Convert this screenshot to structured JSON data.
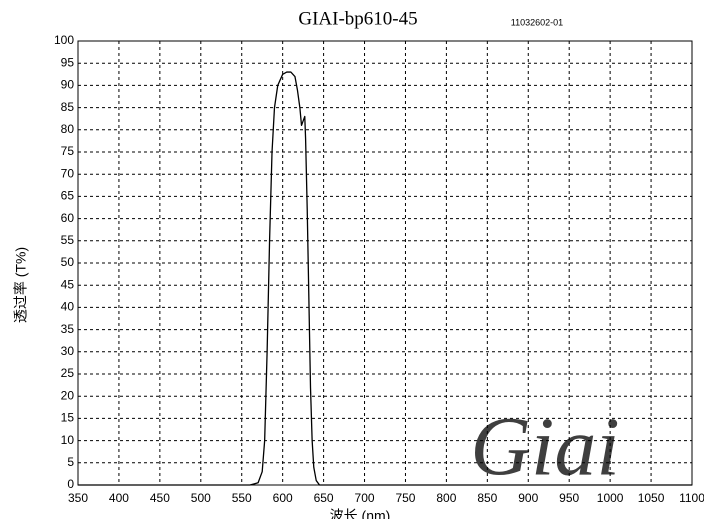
{
  "chart_data": {
    "type": "line",
    "title": "GIAI-bp610-45",
    "subtitle": "11032602-01",
    "x_label": "波长 (nm)",
    "y_label": "透过率 (T%)",
    "watermark": "Giai",
    "x": [
      350,
      560,
      570,
      575,
      578,
      581,
      584,
      587,
      590,
      594,
      600,
      605,
      610,
      615,
      618,
      621,
      623,
      625,
      627,
      628,
      630,
      632,
      634,
      636,
      638,
      641,
      645,
      1100
    ],
    "series": [
      {
        "name": "GIAI-bp610-45",
        "color": "#000000",
        "values": [
          0,
          0,
          0.5,
          3,
          10,
          30,
          55,
          75,
          85,
          90,
          92.5,
          93,
          93,
          92,
          89,
          85,
          81,
          82,
          83,
          78,
          62,
          42,
          22,
          10,
          4,
          1,
          0,
          0
        ]
      }
    ],
    "xlim": [
      350,
      1100
    ],
    "ylim": [
      0,
      100
    ],
    "xticks": [
      350,
      400,
      450,
      500,
      550,
      600,
      650,
      700,
      750,
      800,
      850,
      900,
      950,
      1000,
      1050,
      1100
    ],
    "yticks": [
      0,
      5,
      10,
      15,
      20,
      25,
      30,
      35,
      40,
      45,
      50,
      55,
      60,
      65,
      70,
      75,
      80,
      85,
      90,
      95,
      100
    ],
    "grid": true
  }
}
